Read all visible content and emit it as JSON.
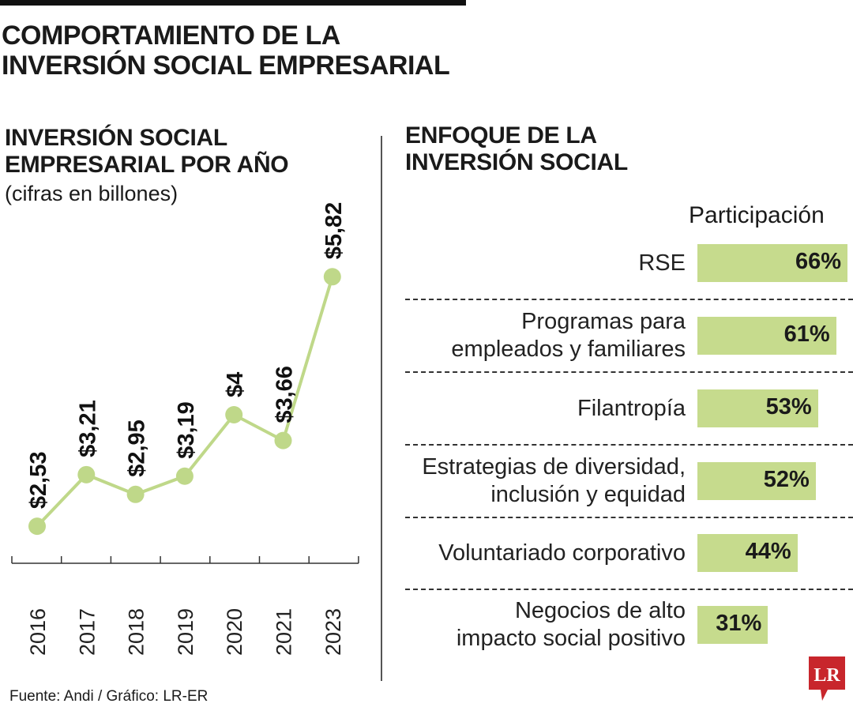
{
  "title": "COMPORTAMIENTO DE LA INVERSIÓN SOCIAL EMPRESARIAL",
  "title_lines": [
    "COMPORTAMIENTO DE LA",
    "INVERSIÓN SOCIAL EMPRESARIAL"
  ],
  "source": "Fuente: Andi / Gráfico: LR-ER",
  "logo_text": "LR",
  "colors": {
    "accent": "#c6db8d",
    "line": "#bfd889",
    "logo": "#c8262c"
  },
  "chart_data": [
    {
      "type": "line",
      "title_lines": [
        "INVERSIÓN SOCIAL",
        "EMPRESARIAL POR AÑO"
      ],
      "subtitle": "(cifras en billones)",
      "categories": [
        "2016",
        "2017",
        "2018",
        "2019",
        "2020",
        "2021",
        "2023"
      ],
      "values": [
        2.53,
        3.21,
        2.95,
        3.19,
        4,
        3.66,
        5.82
      ],
      "data_labels": [
        "$2,53",
        "$3,21",
        "$2,95",
        "$3,19",
        "$4",
        "$3,66",
        "$5,82"
      ],
      "grid": false
    },
    {
      "type": "bar",
      "orientation": "horizontal",
      "title_lines": [
        "ENFOQUE DE LA",
        "INVERSIÓN SOCIAL"
      ],
      "column_header": "Participación",
      "categories": [
        [
          "RSE"
        ],
        [
          "Programas para",
          "empleados y familiares"
        ],
        [
          "Filantropía"
        ],
        [
          "Estrategias de diversidad,",
          "inclusión y equidad"
        ],
        [
          "Voluntariado corporativo"
        ],
        [
          "Negocios de alto",
          "impacto social positivo"
        ]
      ],
      "values": [
        66,
        61,
        53,
        52,
        44,
        31
      ],
      "data_labels": [
        "66%",
        "61%",
        "53%",
        "52%",
        "44%",
        "31%"
      ]
    }
  ]
}
